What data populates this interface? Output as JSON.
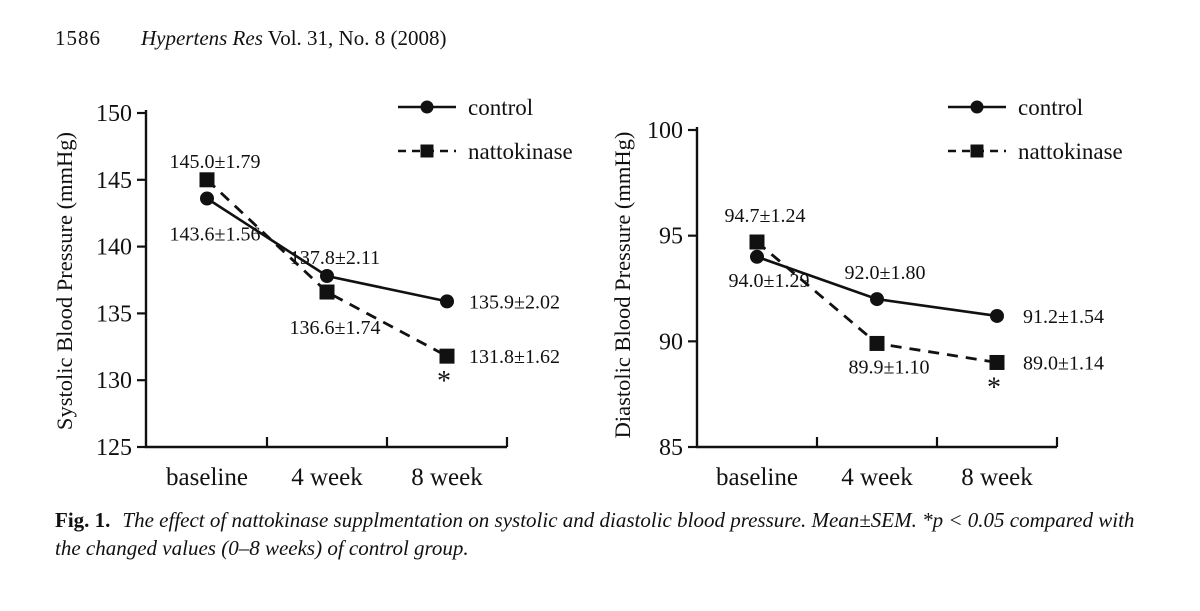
{
  "header": {
    "page_number": "1586",
    "journal": "Hypertens Res",
    "issue": " Vol. 31, No. 8 (2008)"
  },
  "caption": {
    "label": "Fig. 1.",
    "body": "The effect of nattokinase supplmentation on systolic and diastolic blood pressure. Mean±SEM. *p < 0.05 compared with the changed values (0–8 weeks) of control group."
  },
  "colors": {
    "ink": "#111111",
    "background": "#ffffff"
  },
  "chart_data": [
    {
      "type": "line",
      "title": "",
      "xlabel": "",
      "ylabel": "Systolic Blood Pressure (mmHg)",
      "categories": [
        "baseline",
        "4 week",
        "8 week"
      ],
      "ylim": [
        125,
        150
      ],
      "yticks": [
        125,
        130,
        135,
        140,
        145,
        150
      ],
      "grid": false,
      "legend_position": "top-right",
      "series": [
        {
          "name": "control",
          "marker": "circle",
          "line_style": "solid",
          "values": [
            143.6,
            137.8,
            135.9
          ],
          "sem": [
            1.56,
            2.11,
            2.02
          ],
          "point_labels": [
            "143.6±1.56",
            "137.8±2.11",
            "135.9±2.02"
          ],
          "significance": [
            "",
            "",
            ""
          ]
        },
        {
          "name": "nattokinase",
          "marker": "square",
          "line_style": "dashed",
          "values": [
            145.0,
            136.6,
            131.8
          ],
          "sem": [
            1.79,
            1.74,
            1.62
          ],
          "point_labels": [
            "145.0±1.79",
            "136.6±1.74",
            "131.8±1.62"
          ],
          "significance": [
            "",
            "",
            "*"
          ]
        }
      ]
    },
    {
      "type": "line",
      "title": "",
      "xlabel": "",
      "ylabel": "Diastolic Blood Pressure (mmHg)",
      "categories": [
        "baseline",
        "4 week",
        "8 week"
      ],
      "ylim": [
        85,
        100
      ],
      "yticks": [
        85,
        90,
        95,
        100
      ],
      "grid": false,
      "legend_position": "top-right",
      "series": [
        {
          "name": "control",
          "marker": "circle",
          "line_style": "solid",
          "values": [
            94.0,
            92.0,
            91.2
          ],
          "sem": [
            1.29,
            1.8,
            1.54
          ],
          "point_labels": [
            "94.0±1.29",
            "92.0±1.80",
            "91.2±1.54"
          ],
          "significance": [
            "",
            "",
            ""
          ]
        },
        {
          "name": "nattokinase",
          "marker": "square",
          "line_style": "dashed",
          "values": [
            94.7,
            89.9,
            89.0
          ],
          "sem": [
            1.24,
            1.1,
            1.14
          ],
          "point_labels": [
            "94.7±1.24",
            "89.9±1.10",
            "89.0±1.14"
          ],
          "significance": [
            "",
            "",
            "*"
          ]
        }
      ]
    }
  ]
}
